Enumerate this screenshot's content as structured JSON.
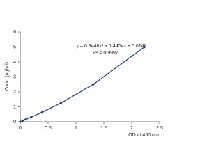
{
  "chart_data": {
    "type": "scatter",
    "x_label": "OD at 450 nm",
    "y_label": "Conc. (ng/ml)",
    "annotations": [
      "y = 0.3448x² + 1.4454x + 0.0146",
      "R² = 0.9997"
    ],
    "series": [
      {
        "color": "#1f3a6e",
        "x": [
          0,
          0.044,
          0.098,
          0.197,
          0.387,
          0.728,
          1.31,
          2.23
        ],
        "values": [
          0,
          0.078,
          0.156,
          0.3125,
          0.625,
          1.25,
          2.5,
          5
        ]
      }
    ],
    "xlim": [
      0,
      2.5
    ],
    "xticks": [
      0,
      0.5,
      1,
      1.5,
      2,
      2.5
    ],
    "ylim": [
      0,
      6
    ],
    "yticks": [
      0,
      1,
      2,
      3,
      4,
      5,
      6
    ],
    "grid": false
  }
}
